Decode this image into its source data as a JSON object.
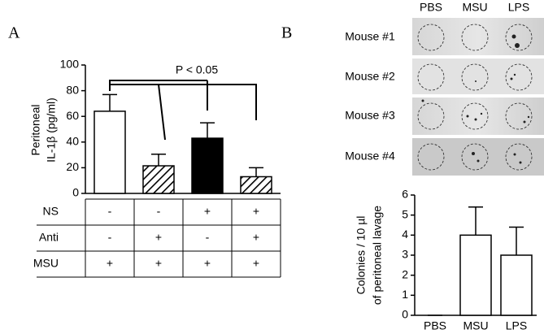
{
  "panel_labels": [
    "A",
    "B"
  ],
  "chart_data": [
    {
      "type": "bar",
      "ylabel": [
        "Peritoneal",
        "IL-1β (pg/ml)"
      ],
      "categories": [
        null,
        null,
        null,
        null
      ],
      "values": [
        64,
        21.5,
        43,
        13
      ],
      "errors": [
        13,
        9,
        12,
        7
      ],
      "fills": [
        "#ffffff",
        "hatch",
        "#000000",
        "hatch"
      ],
      "ylim": [
        0,
        100
      ],
      "yticks": [
        0,
        20,
        40,
        60,
        80,
        100
      ],
      "annotation": "P < 0.05",
      "table": {
        "rows": [
          {
            "label": "NS",
            "cells": [
              "-",
              "-",
              "+",
              "+"
            ]
          },
          {
            "label": "Anti",
            "cells": [
              "-",
              "+",
              "-",
              "+"
            ]
          },
          {
            "label": "MSU",
            "cells": [
              "+",
              "+",
              "+",
              "+"
            ]
          }
        ]
      }
    },
    {
      "type": "bar",
      "ylabel": [
        "Colonies / 10 µl",
        "of peritoneal lavage"
      ],
      "categories": [
        "PBS",
        "MSU",
        "LPS"
      ],
      "values": [
        0,
        4,
        3
      ],
      "errors": [
        0,
        1.4,
        1.4
      ],
      "fills": [
        "#ffffff",
        "#ffffff",
        "#ffffff"
      ],
      "ylim": [
        0,
        6
      ],
      "yticks": [
        0,
        1,
        2,
        3,
        4,
        5,
        6
      ]
    }
  ],
  "plates": {
    "columns": [
      "PBS",
      "MSU",
      "LPS"
    ],
    "rows": [
      "Mouse #1",
      "Mouse #2",
      "Mouse #3",
      "Mouse #4"
    ]
  }
}
